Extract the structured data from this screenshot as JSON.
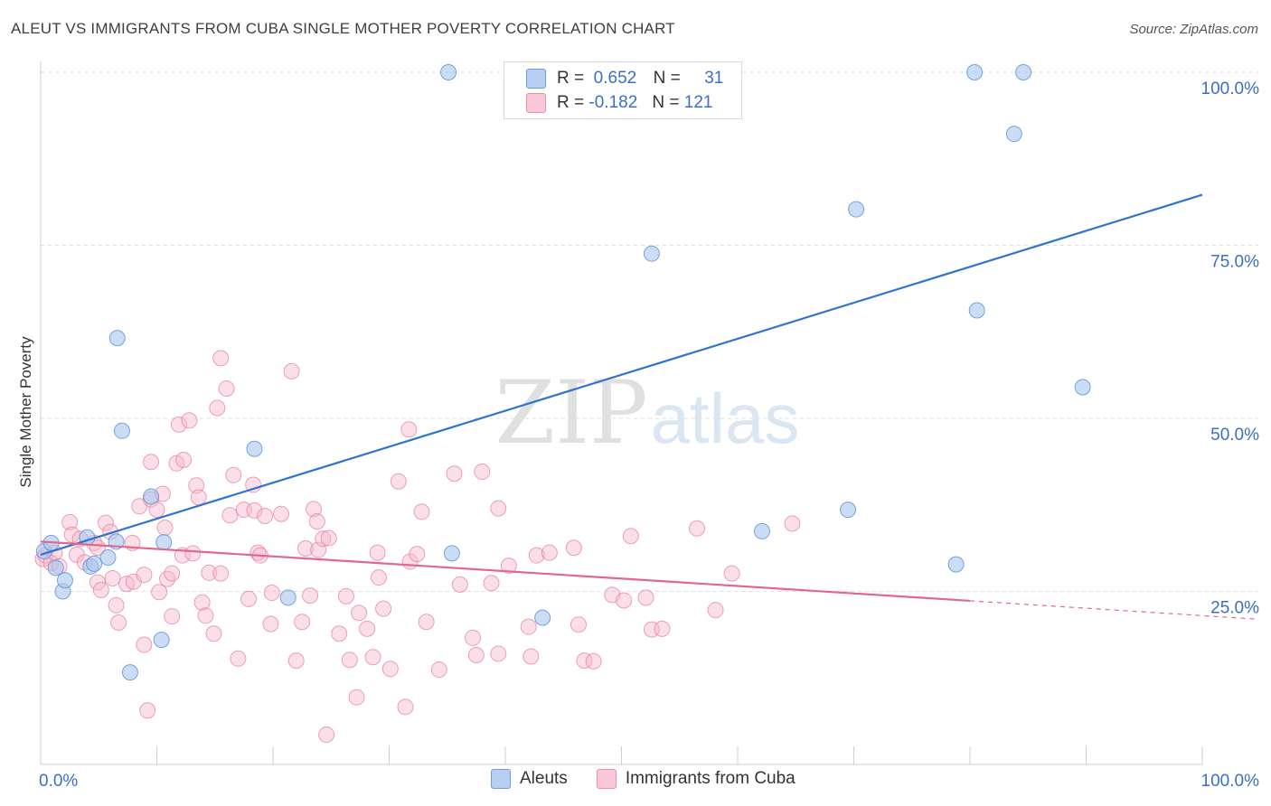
{
  "header": {
    "title": "ALEUT VS IMMIGRANTS FROM CUBA SINGLE MOTHER POVERTY CORRELATION CHART",
    "source": "Source: ZipAtlas.com"
  },
  "watermark": {
    "zip": "ZIP",
    "atlas": "atlas"
  },
  "legend_top": {
    "rows": [
      {
        "r_label": "R =",
        "r_value": "0.652",
        "n_label": "N =",
        "n_value": "31"
      },
      {
        "r_label": "R =",
        "r_value": "-0.182",
        "n_label": "N =",
        "n_value": "121"
      }
    ]
  },
  "colors": {
    "aleut_fill": "#a8c6ee",
    "aleut_stroke": "#5b8fd6",
    "aleut_line": "#2f74d0",
    "cuba_fill": "#f6b9cc",
    "cuba_stroke": "#e67a9d",
    "cuba_line": "#e0688f",
    "tick_label": "#3a6fc4",
    "grid": "#dddddd"
  },
  "chart_data": {
    "type": "scatter",
    "ylabel": "Single Mother Poverty",
    "x_ticks": [
      "0.0%",
      "100.0%"
    ],
    "y_ticks": [
      "25.0%",
      "50.0%",
      "75.0%",
      "100.0%"
    ],
    "xlim": [
      0,
      100
    ],
    "ylim": [
      0,
      100
    ],
    "grid": true,
    "legend": "bottom-center",
    "series": [
      {
        "name": "Aleuts",
        "points": [
          [
            0.3,
            30.8
          ],
          [
            0.9,
            32.0
          ],
          [
            1.3,
            28.4
          ],
          [
            1.9,
            25.0
          ],
          [
            2.1,
            26.6
          ],
          [
            4.0,
            32.8
          ],
          [
            4.3,
            28.6
          ],
          [
            4.6,
            29.0
          ],
          [
            5.8,
            29.9
          ],
          [
            6.5,
            32.2
          ],
          [
            7.0,
            48.2
          ],
          [
            6.6,
            61.6
          ],
          [
            7.7,
            13.3
          ],
          [
            9.5,
            38.7
          ],
          [
            10.4,
            18.0
          ],
          [
            10.6,
            32.1
          ],
          [
            18.4,
            45.6
          ],
          [
            21.3,
            24.1
          ],
          [
            35.4,
            30.5
          ],
          [
            35.1,
            100.0
          ],
          [
            43.2,
            21.2
          ],
          [
            52.6,
            73.8
          ],
          [
            62.1,
            33.7
          ],
          [
            70.2,
            80.2
          ],
          [
            69.5,
            36.8
          ],
          [
            78.8,
            28.9
          ],
          [
            80.4,
            100.0
          ],
          [
            80.6,
            65.6
          ],
          [
            83.8,
            91.1
          ],
          [
            84.6,
            100.0
          ],
          [
            89.7,
            54.5
          ]
        ]
      },
      {
        "name": "Immigrants from Cuba",
        "points": [
          [
            0.2,
            29.7
          ],
          [
            0.4,
            30.2
          ],
          [
            0.9,
            29.1
          ],
          [
            1.2,
            30.6
          ],
          [
            1.6,
            28.6
          ],
          [
            2.5,
            35.0
          ],
          [
            2.7,
            33.2
          ],
          [
            3.1,
            30.3
          ],
          [
            3.4,
            32.6
          ],
          [
            3.8,
            29.2
          ],
          [
            4.6,
            32.0
          ],
          [
            4.9,
            31.3
          ],
          [
            4.9,
            26.3
          ],
          [
            5.2,
            25.2
          ],
          [
            5.6,
            34.9
          ],
          [
            6.0,
            33.6
          ],
          [
            6.2,
            26.9
          ],
          [
            6.5,
            23.0
          ],
          [
            6.7,
            20.5
          ],
          [
            7.4,
            26.1
          ],
          [
            7.9,
            32.0
          ],
          [
            8.0,
            26.4
          ],
          [
            8.5,
            37.3
          ],
          [
            8.9,
            17.3
          ],
          [
            8.9,
            27.4
          ],
          [
            9.2,
            7.8
          ],
          [
            9.5,
            38.3
          ],
          [
            9.5,
            43.7
          ],
          [
            10.0,
            36.8
          ],
          [
            10.2,
            24.9
          ],
          [
            10.5,
            39.1
          ],
          [
            10.7,
            34.2
          ],
          [
            10.9,
            26.8
          ],
          [
            11.3,
            27.6
          ],
          [
            11.3,
            21.4
          ],
          [
            11.7,
            43.5
          ],
          [
            11.9,
            49.1
          ],
          [
            12.2,
            30.2
          ],
          [
            12.3,
            44.0
          ],
          [
            12.8,
            49.7
          ],
          [
            13.1,
            30.5
          ],
          [
            13.4,
            40.3
          ],
          [
            13.6,
            38.6
          ],
          [
            13.9,
            23.4
          ],
          [
            14.2,
            21.5
          ],
          [
            14.5,
            27.7
          ],
          [
            14.9,
            18.9
          ],
          [
            15.2,
            51.5
          ],
          [
            15.5,
            27.6
          ],
          [
            15.5,
            58.7
          ],
          [
            16.0,
            54.3
          ],
          [
            16.3,
            36.0
          ],
          [
            16.6,
            41.8
          ],
          [
            17.0,
            15.3
          ],
          [
            17.5,
            36.8
          ],
          [
            17.9,
            23.9
          ],
          [
            18.3,
            40.4
          ],
          [
            18.4,
            36.7
          ],
          [
            18.7,
            30.6
          ],
          [
            18.9,
            30.2
          ],
          [
            19.3,
            35.9
          ],
          [
            19.8,
            20.3
          ],
          [
            19.9,
            24.8
          ],
          [
            20.7,
            36.2
          ],
          [
            21.6,
            56.8
          ],
          [
            22.0,
            15.0
          ],
          [
            22.5,
            20.6
          ],
          [
            22.8,
            31.2
          ],
          [
            23.2,
            24.4
          ],
          [
            23.5,
            36.9
          ],
          [
            23.8,
            35.1
          ],
          [
            23.9,
            31.0
          ],
          [
            24.3,
            32.6
          ],
          [
            24.6,
            4.3
          ],
          [
            24.8,
            32.7
          ],
          [
            25.7,
            18.9
          ],
          [
            26.3,
            24.3
          ],
          [
            26.6,
            15.1
          ],
          [
            27.2,
            9.7
          ],
          [
            27.4,
            21.9
          ],
          [
            28.1,
            19.6
          ],
          [
            28.6,
            15.5
          ],
          [
            29.0,
            30.6
          ],
          [
            29.1,
            27.0
          ],
          [
            29.5,
            22.5
          ],
          [
            30.1,
            13.8
          ],
          [
            30.8,
            40.9
          ],
          [
            31.4,
            8.3
          ],
          [
            31.7,
            48.4
          ],
          [
            31.8,
            29.3
          ],
          [
            32.4,
            30.4
          ],
          [
            32.8,
            36.5
          ],
          [
            33.2,
            20.6
          ],
          [
            34.3,
            13.7
          ],
          [
            35.6,
            42.0
          ],
          [
            36.1,
            26.0
          ],
          [
            37.2,
            18.3
          ],
          [
            37.5,
            15.8
          ],
          [
            38.0,
            42.3
          ],
          [
            38.8,
            26.2
          ],
          [
            39.4,
            16.0
          ],
          [
            39.4,
            37.0
          ],
          [
            40.3,
            28.7
          ],
          [
            42.0,
            19.9
          ],
          [
            42.2,
            15.6
          ],
          [
            42.7,
            30.2
          ],
          [
            43.8,
            30.6
          ],
          [
            45.9,
            31.3
          ],
          [
            46.3,
            20.2
          ],
          [
            46.8,
            15.0
          ],
          [
            47.6,
            14.9
          ],
          [
            49.2,
            24.5
          ],
          [
            50.2,
            23.7
          ],
          [
            50.8,
            33.0
          ],
          [
            52.1,
            24.1
          ],
          [
            52.6,
            19.5
          ],
          [
            53.5,
            19.6
          ],
          [
            56.5,
            34.1
          ],
          [
            58.1,
            22.3
          ],
          [
            59.5,
            27.6
          ],
          [
            64.7,
            34.8
          ]
        ]
      }
    ],
    "trendlines": [
      {
        "series": "Aleuts",
        "x": [
          0,
          100
        ],
        "y": [
          30.3,
          82.3
        ]
      },
      {
        "series": "Immigrants from Cuba",
        "x": [
          0,
          100
        ],
        "y": [
          32.2,
          21.5
        ],
        "solid_until": 80
      }
    ]
  },
  "bottom_legend": {
    "items": [
      "Aleuts",
      "Immigrants from Cuba"
    ]
  }
}
